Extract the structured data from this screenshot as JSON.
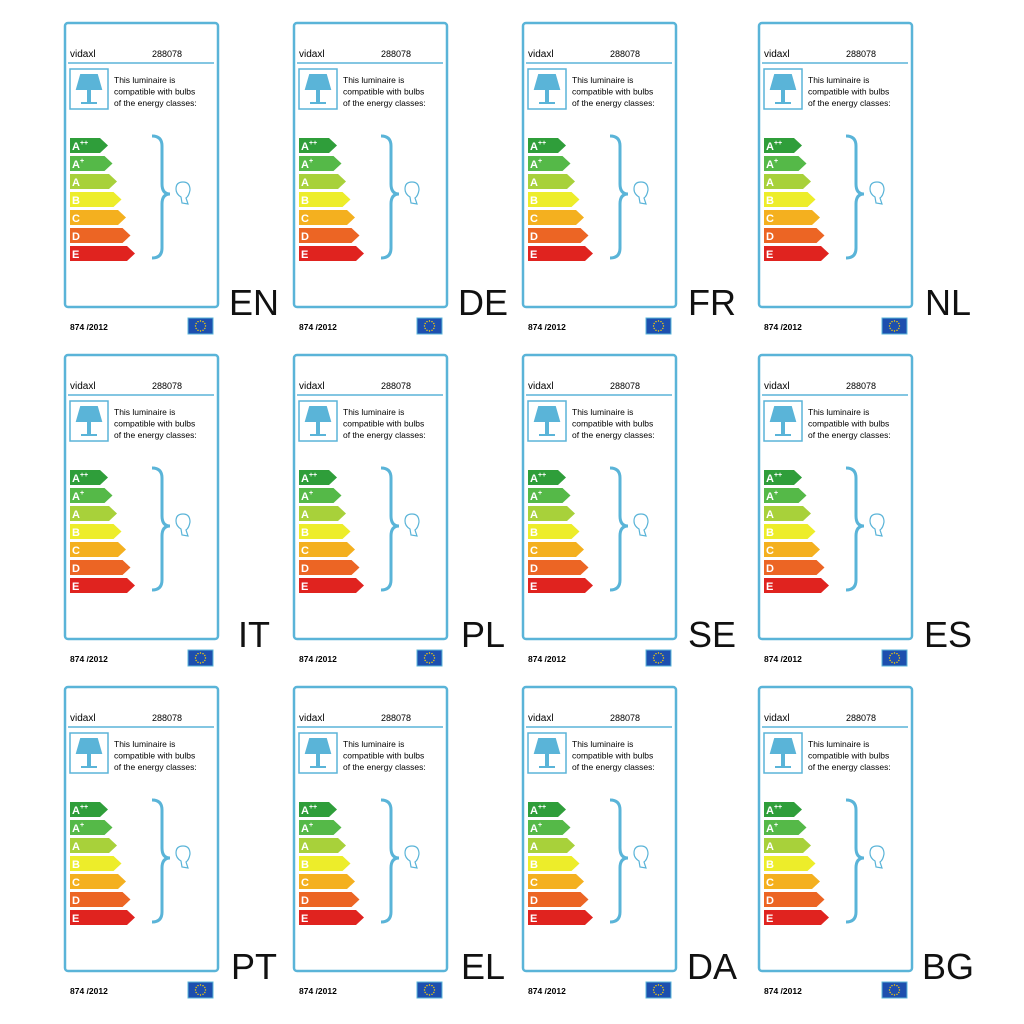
{
  "labels": [
    {
      "brand": "vidaxl",
      "model": "288078",
      "description": [
        "This luminaire is",
        "compatible with bulbs",
        "of the energy classes:"
      ],
      "classes": [
        "A++",
        "A+",
        "A",
        "B",
        "C",
        "D",
        "E"
      ],
      "regulation": "874 /2012",
      "language": "EN"
    },
    {
      "brand": "vidaxl",
      "model": "288078",
      "description": [
        "This luminaire is",
        "compatible with bulbs",
        "of the energy classes:"
      ],
      "classes": [
        "A++",
        "A+",
        "A",
        "B",
        "C",
        "D",
        "E"
      ],
      "regulation": "874 /2012",
      "language": "DE"
    },
    {
      "brand": "vidaxl",
      "model": "288078",
      "description": [
        "This luminaire is",
        "compatible with bulbs",
        "of the energy classes:"
      ],
      "classes": [
        "A++",
        "A+",
        "A",
        "B",
        "C",
        "D",
        "E"
      ],
      "regulation": "874 /2012",
      "language": "FR"
    },
    {
      "brand": "vidaxl",
      "model": "288078",
      "description": [
        "This luminaire is",
        "compatible with bulbs",
        "of the energy classes:"
      ],
      "classes": [
        "A++",
        "A+",
        "A",
        "B",
        "C",
        "D",
        "E"
      ],
      "regulation": "874 /2012",
      "language": "NL"
    },
    {
      "brand": "vidaxl",
      "model": "288078",
      "description": [
        "This luminaire is",
        "compatible with bulbs",
        "of the energy classes:"
      ],
      "classes": [
        "A++",
        "A+",
        "A",
        "B",
        "C",
        "D",
        "E"
      ],
      "regulation": "874 /2012",
      "language": "IT"
    },
    {
      "brand": "vidaxl",
      "model": "288078",
      "description": [
        "This luminaire is",
        "compatible with bulbs",
        "of the energy classes:"
      ],
      "classes": [
        "A++",
        "A+",
        "A",
        "B",
        "C",
        "D",
        "E"
      ],
      "regulation": "874 /2012",
      "language": "PL"
    },
    {
      "brand": "vidaxl",
      "model": "288078",
      "description": [
        "This luminaire is",
        "compatible with bulbs",
        "of the energy classes:"
      ],
      "classes": [
        "A++",
        "A+",
        "A",
        "B",
        "C",
        "D",
        "E"
      ],
      "regulation": "874 /2012",
      "language": "SE"
    },
    {
      "brand": "vidaxl",
      "model": "288078",
      "description": [
        "This luminaire is",
        "compatible with bulbs",
        "of the energy classes:"
      ],
      "classes": [
        "A++",
        "A+",
        "A",
        "B",
        "C",
        "D",
        "E"
      ],
      "regulation": "874 /2012",
      "language": "ES"
    },
    {
      "brand": "vidaxl",
      "model": "288078",
      "description": [
        "This luminaire is",
        "compatible with bulbs",
        "of the energy classes:"
      ],
      "classes": [
        "A++",
        "A+",
        "A",
        "B",
        "C",
        "D",
        "E"
      ],
      "regulation": "874 /2012",
      "language": "PT"
    },
    {
      "brand": "vidaxl",
      "model": "288078",
      "description": [
        "This luminaire is",
        "compatible with bulbs",
        "of the energy classes:"
      ],
      "classes": [
        "A++",
        "A+",
        "A",
        "B",
        "C",
        "D",
        "E"
      ],
      "regulation": "874 /2012",
      "language": "EL"
    },
    {
      "brand": "vidaxl",
      "model": "288078",
      "description": [
        "This luminaire is",
        "compatible with bulbs",
        "of the energy classes:"
      ],
      "classes": [
        "A++",
        "A+",
        "A",
        "B",
        "C",
        "D",
        "E"
      ],
      "regulation": "874 /2012",
      "language": "DA"
    },
    {
      "brand": "vidaxl",
      "model": "288078",
      "description": [
        "This luminaire is",
        "compatible with bulbs",
        "of the energy classes:"
      ],
      "classes": [
        "A++",
        "A+",
        "A",
        "B",
        "C",
        "D",
        "E"
      ],
      "regulation": "874 /2012",
      "language": "BG"
    }
  ]
}
